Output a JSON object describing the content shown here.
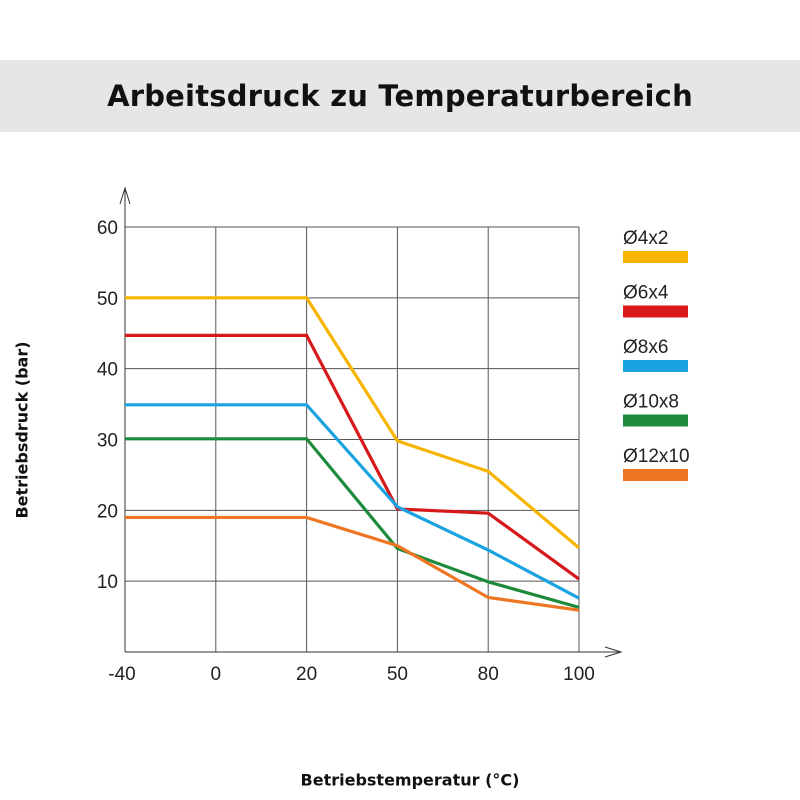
{
  "chart_data": {
    "type": "line",
    "title": "Arbeitsdruck zu Temperaturbereich",
    "xlabel": "Betriebstemperatur (°C)",
    "ylabel": "Betriebsdruck (bar)",
    "x_ticks": [
      "-40",
      "0",
      "20",
      "50",
      "80",
      "100"
    ],
    "y_ticks": [
      "10",
      "20",
      "30",
      "40",
      "50",
      "60"
    ],
    "ylim": [
      0,
      60
    ],
    "x_scale": "categorical-equal-spacing",
    "grid": true,
    "legend_position": "right",
    "series": [
      {
        "name": "Ø4x2",
        "color": "#f7b500",
        "x": [
          "-40",
          "0",
          "20",
          "50",
          "80",
          "100"
        ],
        "y": [
          50,
          50,
          50,
          29.8,
          25.5,
          14.7
        ]
      },
      {
        "name": "Ø6x4",
        "color": "#d7191c",
        "x": [
          "-40",
          "0",
          "20",
          "50",
          "80",
          "100"
        ],
        "y": [
          44.7,
          44.7,
          44.7,
          20.2,
          19.6,
          10.3
        ]
      },
      {
        "name": "Ø8x6",
        "color": "#1aa3e0",
        "x": [
          "-40",
          "0",
          "20",
          "50",
          "80",
          "100"
        ],
        "y": [
          34.9,
          34.9,
          34.9,
          20.5,
          14.4,
          7.6
        ]
      },
      {
        "name": "Ø10x8",
        "color": "#1e8a3c",
        "x": [
          "-40",
          "0",
          "20",
          "50",
          "80",
          "100"
        ],
        "y": [
          30.1,
          30.1,
          30.1,
          14.6,
          9.9,
          6.3
        ]
      },
      {
        "name": "Ø12x10",
        "color": "#ee7623",
        "x": [
          "-40",
          "0",
          "20",
          "50",
          "80",
          "100"
        ],
        "y": [
          19.0,
          19.0,
          19.0,
          15.0,
          7.7,
          5.9
        ]
      }
    ]
  }
}
